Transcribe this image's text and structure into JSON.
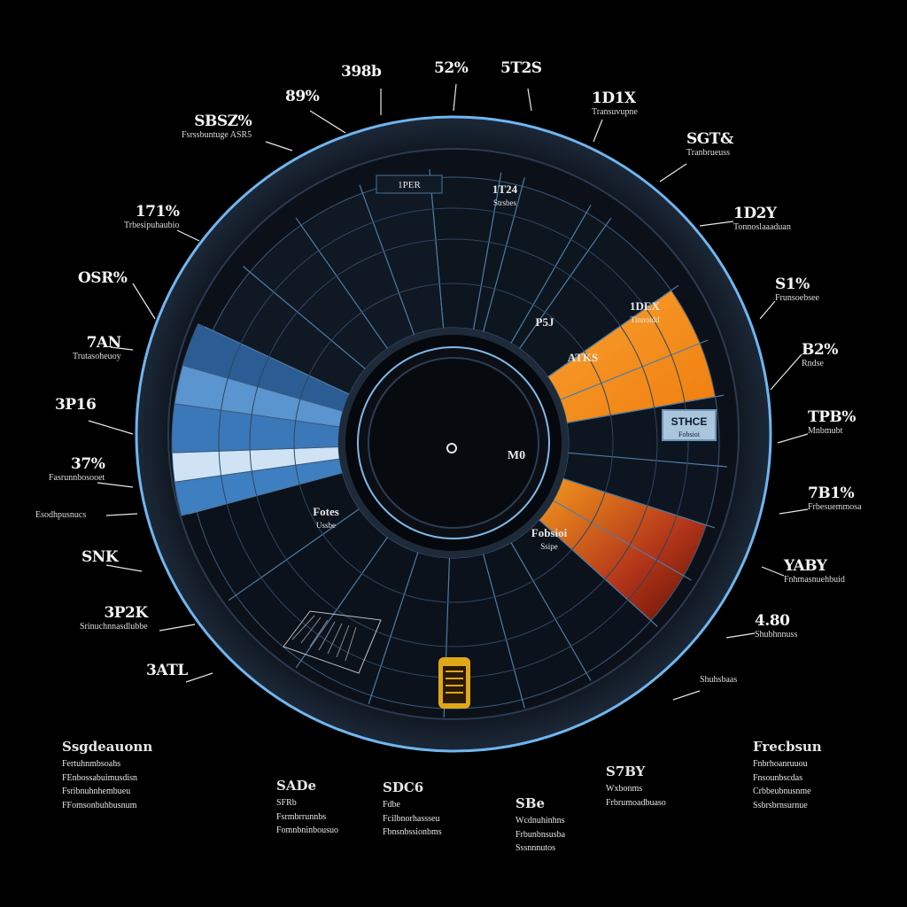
{
  "wheel": {
    "hub_text": "M0",
    "chip_text_1": "STHCE",
    "chip_text_2": "Fobsioi",
    "top_tag": "1PER",
    "inner_labels": [
      {
        "head": "1T24",
        "sub": "Strsbes"
      },
      {
        "head": "P5J",
        "sub": ""
      },
      {
        "head": "1DEX",
        "sub": "Tinnoidd"
      },
      {
        "head": "ATKS",
        "sub": ""
      },
      {
        "head": "Fotes",
        "sub": "Ussbe"
      },
      {
        "head": "Fobsioi",
        "sub": "Ssipe"
      }
    ]
  },
  "callouts_left": [
    {
      "head": "398b",
      "sub": ""
    },
    {
      "head": "89%",
      "sub": ""
    },
    {
      "head": "SBSZ%",
      "sub": "Fsrssbuntuge ASR5"
    },
    {
      "head": "171%",
      "sub": "Trbesipuhaubio"
    },
    {
      "head": "OSR%",
      "sub": ""
    },
    {
      "head": "7AN",
      "sub": "Trutasoheuoy"
    },
    {
      "head": "3P16",
      "sub": ""
    },
    {
      "head": "37%",
      "sub": "Fasrunnbosooet"
    },
    {
      "head": "",
      "sub": "Esodhpusnucs"
    },
    {
      "head": "SNK",
      "sub": ""
    },
    {
      "head": "3P2K",
      "sub": "Srinuchnnasdlubbe"
    },
    {
      "head": "3ATL",
      "sub": ""
    }
  ],
  "callouts_right": [
    {
      "head": "5T2S",
      "sub": ""
    },
    {
      "head": "52%",
      "sub": ""
    },
    {
      "head": "1D1X",
      "sub": "Transuvupne"
    },
    {
      "head": "SGT&",
      "sub": "Tranbrueuss"
    },
    {
      "head": "1D2Y",
      "sub": "Tonnoslaaaduan"
    },
    {
      "head": "S1%",
      "sub": "Frunsoebsee"
    },
    {
      "head": "B2%",
      "sub": "Rndse"
    },
    {
      "head": "TPB%",
      "sub": "Mnbmubt"
    },
    {
      "head": "7B1%",
      "sub": "Frbesuemmosa"
    },
    {
      "head": "YABY",
      "sub": "Fnhmasnuehbuid"
    },
    {
      "head": "4.80",
      "sub": "Shubhnnuss"
    },
    {
      "head": "",
      "sub": "Shuhsbaas"
    }
  ],
  "bottom": {
    "col1": {
      "head": "Ssgdeauonn",
      "lines": [
        "Fertuhnmbsoahs",
        "FEnbossabuimusdisn",
        "Fsribnuhnhembueu",
        "FFomsonbuhbusnum"
      ]
    },
    "col2": {
      "head": "SADe",
      "lines": [
        "SFRb",
        "Fsrmbrrunnbs",
        "Fomnbninbousuo"
      ]
    },
    "col3": {
      "head": "SDC6",
      "lines": [
        "Fdbe",
        "Fcilbnorhassseu",
        "Fbnsnbssionbms"
      ]
    },
    "col4": {
      "head": "SBe",
      "lines": [
        "Wcdnuhinhns",
        "Frbunbnsusba",
        "Sssnnnutos"
      ]
    },
    "col5": {
      "head": "S7BY",
      "lines": [
        "Wxbonms",
        "Frbrumoadbuaso"
      ]
    },
    "col6": {
      "head": "Frecbsun",
      "lines": [
        "Fnbrhoanruuou",
        "Fnsounbscdas",
        "Crbbeubnusnme",
        "Ssbrsbrnsurnue"
      ]
    }
  },
  "colors": {
    "background": "#000000",
    "rim": "#1a2230",
    "rim_glow": "#5aa8e8",
    "accent_orange": "#f7941d",
    "accent_blue": "#3e7fc1",
    "accent_red": "#8a1c0c"
  }
}
